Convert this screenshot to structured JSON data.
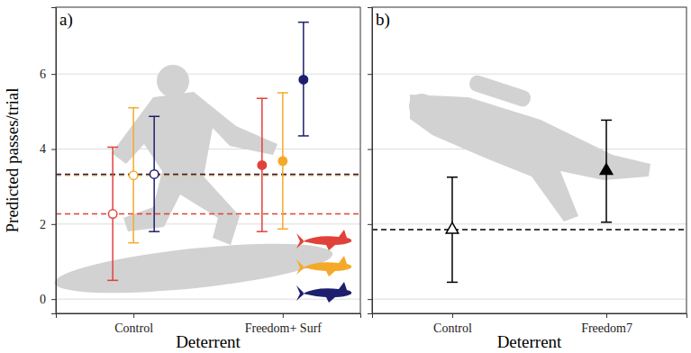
{
  "chart_data": [
    {
      "type": "scatter",
      "title": "a)",
      "x_label": "Deterrent",
      "y_label": "Predicted passes/trial",
      "categories": [
        "Control",
        "Freedom+ Surf"
      ],
      "series": [
        {
          "color": "#e0423a",
          "marker": "circle",
          "values": [
            2.27,
            3.57
          ],
          "lower": [
            0.5,
            1.8
          ],
          "upper": [
            4.05,
            5.35
          ]
        },
        {
          "color": "#f5a92a",
          "marker": "circle",
          "values": [
            3.3,
            3.68
          ],
          "lower": [
            1.5,
            1.87
          ],
          "upper": [
            5.1,
            5.5
          ]
        },
        {
          "color": "#1d1f6e",
          "marker": "circle",
          "values": [
            3.33,
            5.85
          ],
          "lower": [
            1.8,
            4.35
          ],
          "upper": [
            4.87,
            7.38
          ]
        }
      ],
      "ylim": [
        -0.38,
        7.78
      ],
      "yticks": [
        0,
        2,
        4,
        6
      ],
      "grid": true
    },
    {
      "type": "scatter",
      "title": "b)",
      "x_label": "Deterrent",
      "categories": [
        "Control",
        "Freedom7"
      ],
      "series": [
        {
          "color": "#000000",
          "marker": "triangle",
          "values": [
            1.85,
            3.42
          ],
          "lower": [
            0.45,
            2.05
          ],
          "upper": [
            3.25,
            4.77
          ]
        }
      ],
      "ylim": [
        -0.38,
        7.78
      ],
      "yticks": [
        0,
        2,
        4,
        6
      ],
      "grid": true,
      "tick_labels": "x"
    }
  ]
}
